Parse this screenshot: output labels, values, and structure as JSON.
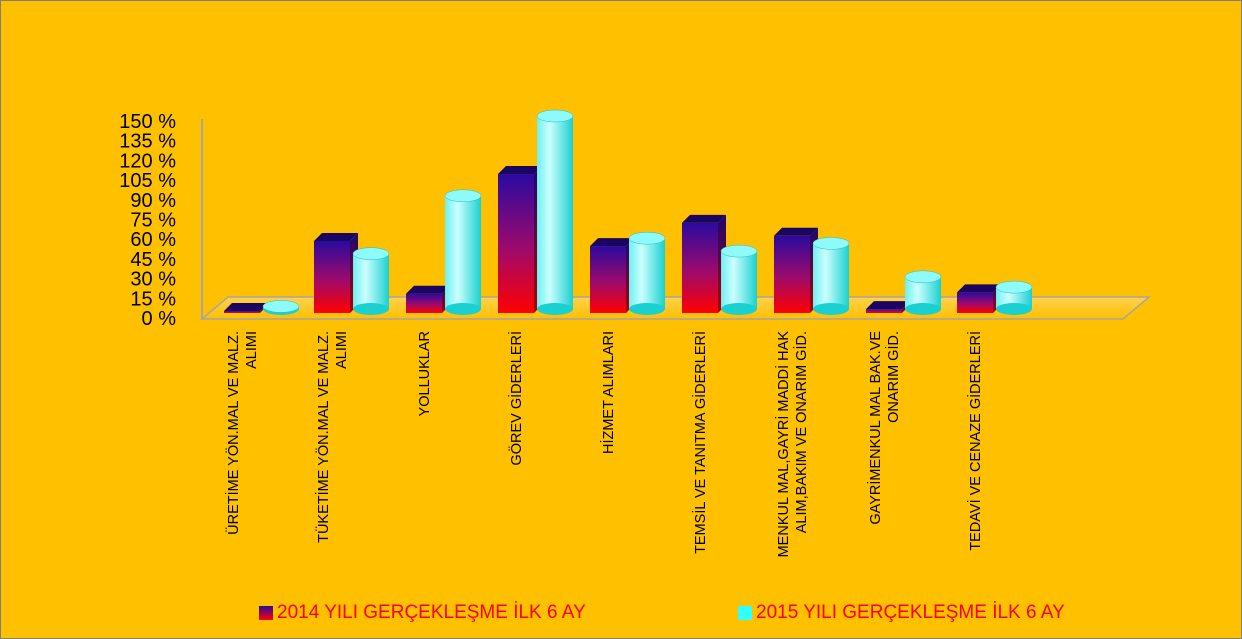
{
  "chart_data": {
    "type": "bar",
    "categories": [
      "ÜRETİME YÖN.MAL VE MALZ. ALIMI",
      "TÜKETİME YÖN.MAL VE MALZ. ALIMI",
      "YOLLUKLAR",
      "GÖREV GİDERLERİ",
      "HİZMET ALIMLARI",
      "TEMSİL VE TANITMA GİDERLERİ",
      "MENKUL MAL,GAYRİ MADDİ HAK ALIM,BAKIM VE ONARIM GİD.",
      "GAYRİMENKUL MAL BAK.VE ONARIM GİD.",
      "TEDAVİ VE CENAZE GİDERLERİ"
    ],
    "category_label_lines": [
      [
        "ÜRETİME YÖN.MAL VE MALZ.",
        "ALIMI"
      ],
      [
        "TÜKETİME YÖN.MAL VE MALZ.",
        "ALIMI"
      ],
      [
        "YOLLUKLAR"
      ],
      [
        "GÖREV GİDERLERİ"
      ],
      [
        "HİZMET ALIMLARI"
      ],
      [
        "TEMSİL VE TANITMA GİDERLERİ"
      ],
      [
        "MENKUL MAL,GAYRİ MADDİ HAK",
        "ALIM,BAKIM VE ONARIM GİD."
      ],
      [
        "GAYRİMENKUL MAL BAK.VE",
        "ONARIM GİD."
      ],
      [
        "TEDAVİ VE CENAZE GİDERLERİ"
      ]
    ],
    "series": [
      {
        "name": "2014 YILI GERÇEKLEŞME İLK 6 AY",
        "values": [
          1,
          56,
          15,
          108,
          52,
          70,
          60,
          3,
          16
        ],
        "color_top": "#2a0aa0",
        "color_bottom": "#ff0000"
      },
      {
        "name": "2015 YILI GERÇEKLEŞME İLK 6 AY",
        "values": [
          2,
          43,
          88,
          150,
          55,
          45,
          51,
          25,
          17
        ],
        "color": "#33ffff"
      }
    ],
    "y_ticks": [
      "0 %",
      "15 %",
      "30 %",
      "45 %",
      "60 %",
      "75 %",
      "90 %",
      "105 %",
      "120 %",
      "135 %",
      "150 %"
    ],
    "ylim": [
      0,
      150
    ],
    "legend_position": "bottom",
    "grid": false
  },
  "colors": {
    "background": "#FFC000",
    "legend_text": "#ff0000",
    "axis": "#a6a6a6"
  }
}
